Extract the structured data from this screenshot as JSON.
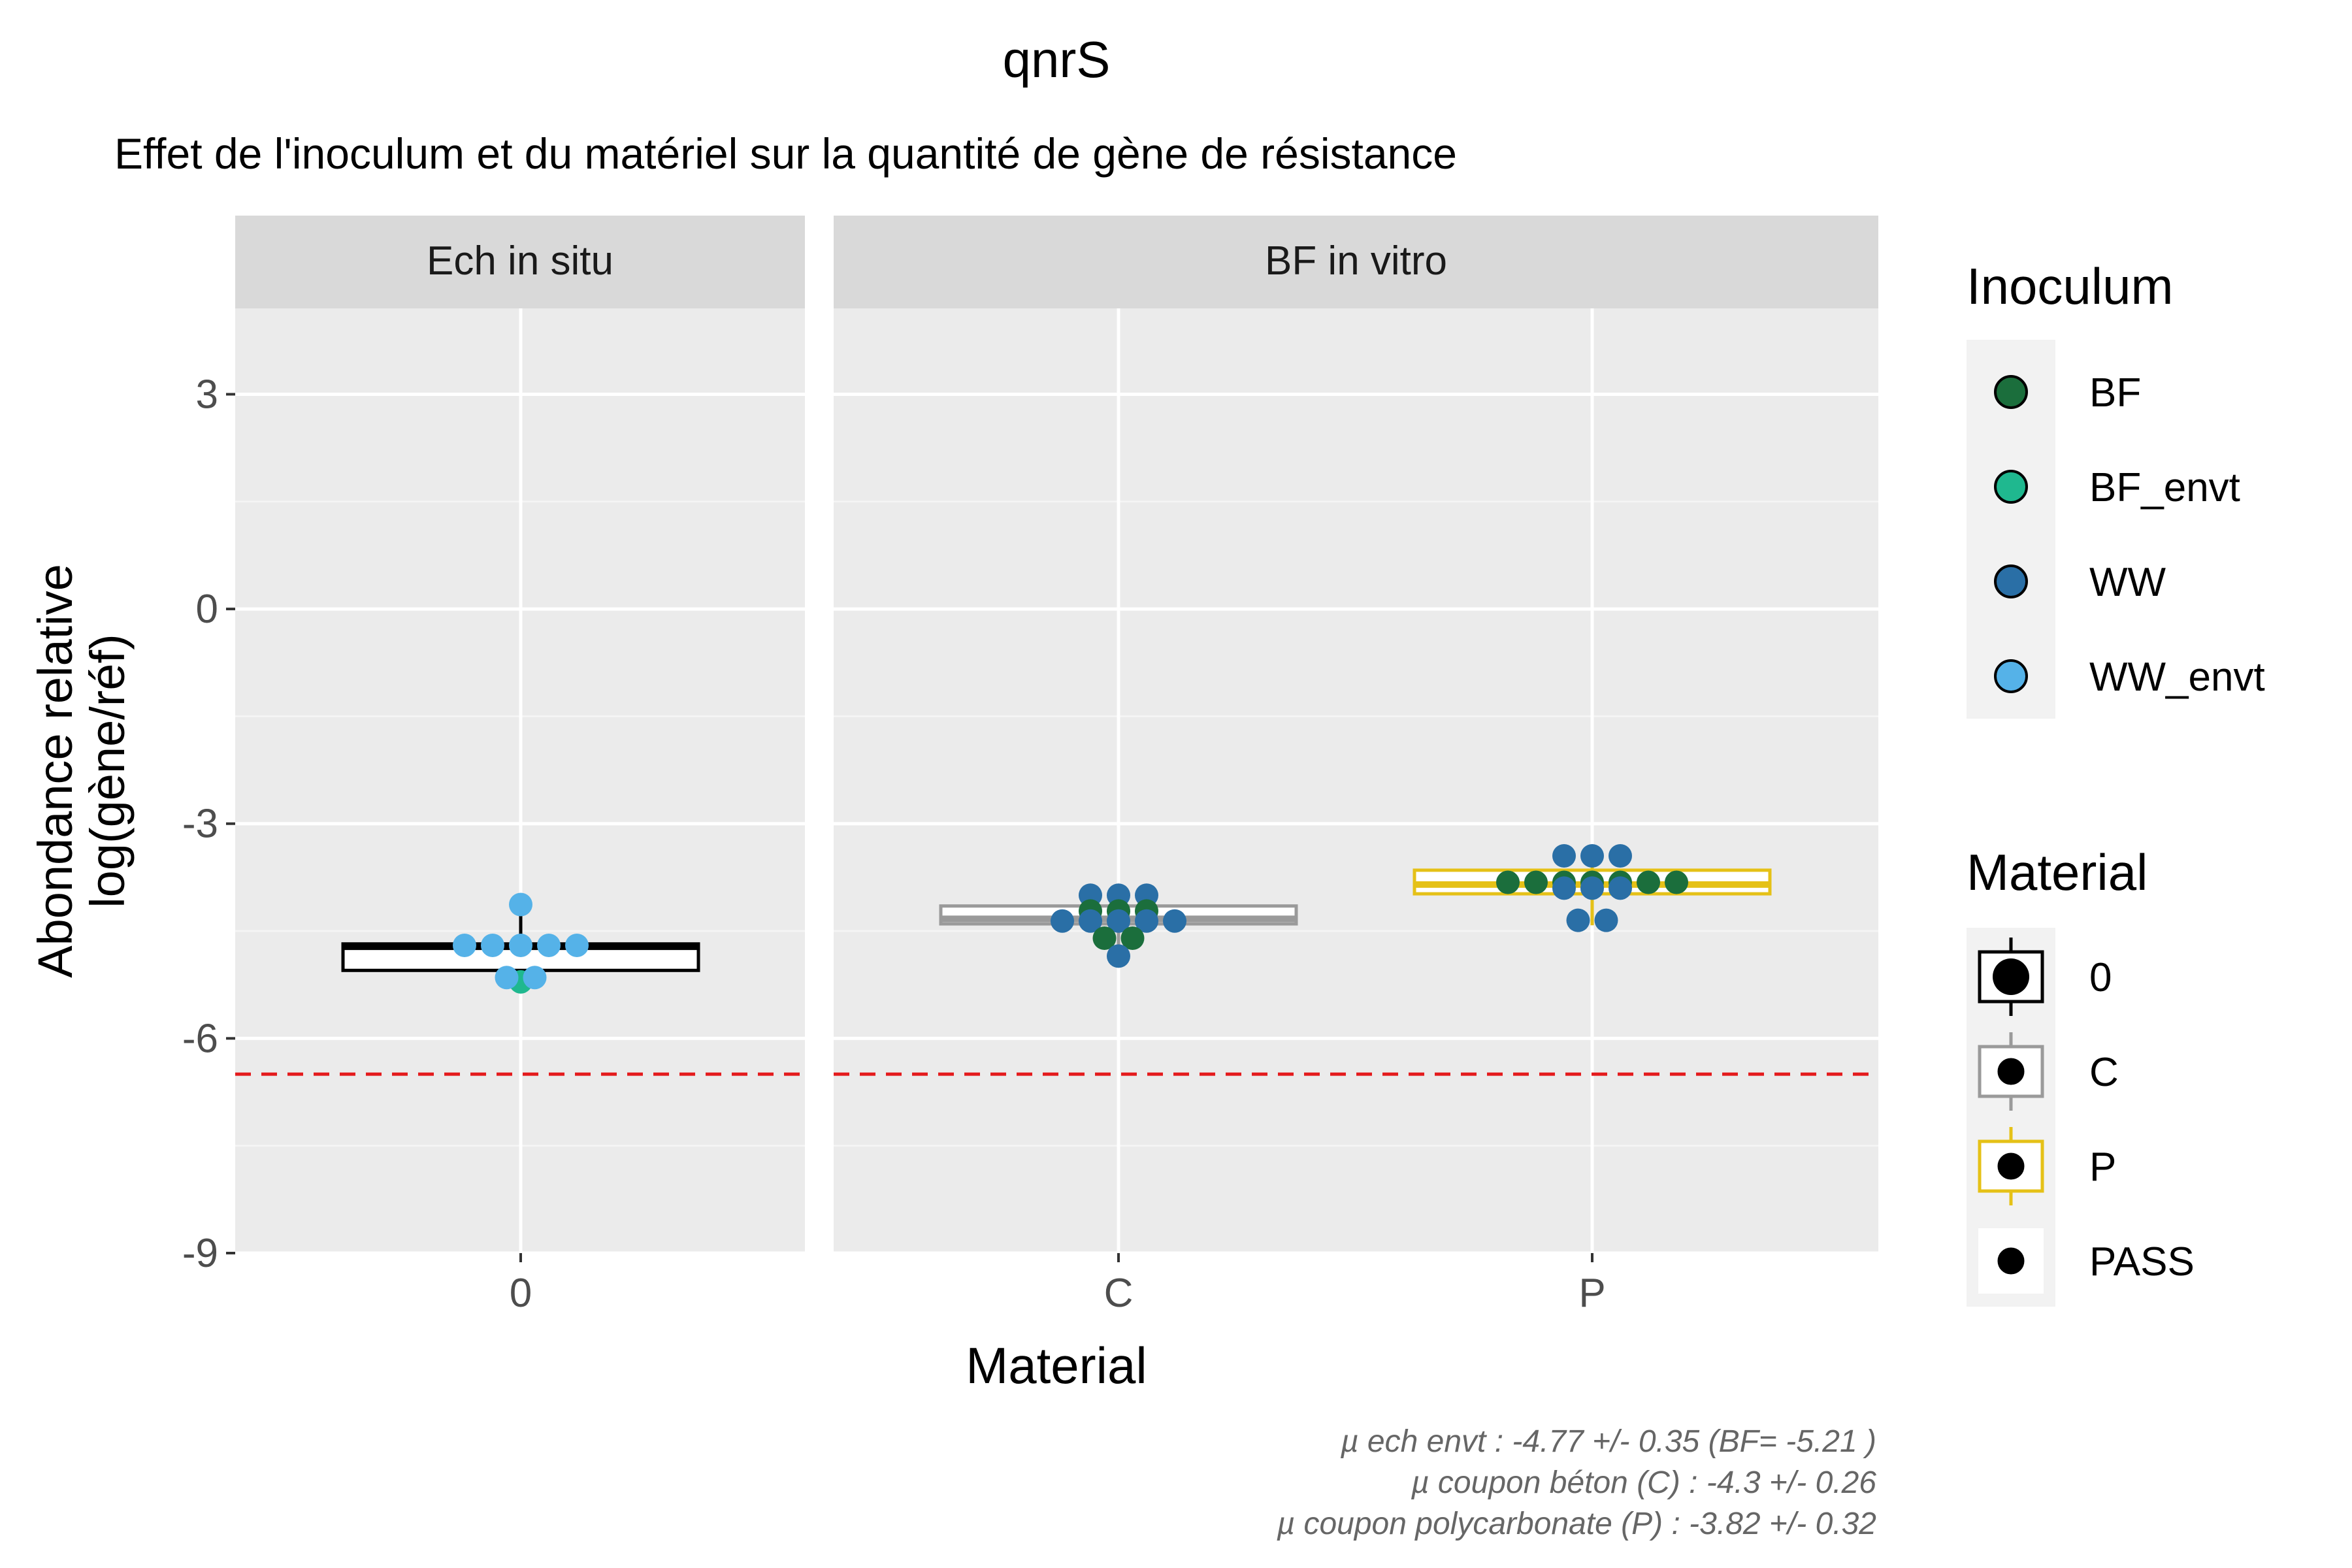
{
  "chart_data": {
    "type": "boxplot",
    "title": "qnrS",
    "subtitle": "Effet de l'inoculum et du matériel sur la quantité de gène de résistance",
    "xlabel": "Material",
    "ylabel_lines": [
      "Abondance relative",
      "log(gène/réf)"
    ],
    "ylim": [
      -9.0,
      4.2
    ],
    "yticks": [
      3,
      0,
      -3,
      -6,
      -9
    ],
    "ytick_labels": [
      "3",
      "0",
      "-3",
      "-6",
      "-9"
    ],
    "grid": true,
    "threshold_line": {
      "y": -6.5,
      "color": "#e41a1c",
      "style": "dashed"
    },
    "panels": [
      {
        "strip": "Ech in situ",
        "categories": [
          "0"
        ],
        "boxes": [
          {
            "category": "0",
            "q1": -5.05,
            "median": -4.72,
            "q3": -4.68,
            "whisker_low": -5.15,
            "whisker_high": -4.13,
            "material": "0"
          }
        ],
        "points": [
          {
            "category": "0",
            "y": -4.13,
            "inoculum": "WW_envt"
          },
          {
            "category": "0",
            "y": -4.7,
            "inoculum": "WW_envt"
          },
          {
            "category": "0",
            "y": -4.7,
            "inoculum": "WW_envt"
          },
          {
            "category": "0",
            "y": -4.7,
            "inoculum": "WW_envt"
          },
          {
            "category": "0",
            "y": -4.7,
            "inoculum": "WW_envt"
          },
          {
            "category": "0",
            "y": -4.7,
            "inoculum": "WW_envt"
          },
          {
            "category": "0",
            "y": -5.21,
            "inoculum": "BF_envt"
          },
          {
            "category": "0",
            "y": -5.15,
            "inoculum": "WW_envt"
          },
          {
            "category": "0",
            "y": -5.15,
            "inoculum": "WW_envt"
          }
        ]
      },
      {
        "strip": "BF in vitro",
        "categories": [
          "C",
          "P"
        ],
        "boxes": [
          {
            "category": "C",
            "q1": -4.4,
            "median": -4.33,
            "q3": -4.15,
            "whisker_low": -4.85,
            "whisker_high": -4.0,
            "material": "C"
          },
          {
            "category": "P",
            "q1": -3.98,
            "median": -3.85,
            "q3": -3.65,
            "whisker_low": -4.42,
            "whisker_high": -3.45,
            "material": "P"
          }
        ],
        "points": [
          {
            "category": "C",
            "y": -4.0,
            "inoculum": "WW"
          },
          {
            "category": "C",
            "y": -4.0,
            "inoculum": "WW"
          },
          {
            "category": "C",
            "y": -4.0,
            "inoculum": "WW"
          },
          {
            "category": "C",
            "y": -4.22,
            "inoculum": "BF"
          },
          {
            "category": "C",
            "y": -4.22,
            "inoculum": "BF"
          },
          {
            "category": "C",
            "y": -4.22,
            "inoculum": "BF"
          },
          {
            "category": "C",
            "y": -4.36,
            "inoculum": "WW"
          },
          {
            "category": "C",
            "y": -4.36,
            "inoculum": "WW"
          },
          {
            "category": "C",
            "y": -4.36,
            "inoculum": "WW"
          },
          {
            "category": "C",
            "y": -4.36,
            "inoculum": "WW"
          },
          {
            "category": "C",
            "y": -4.36,
            "inoculum": "WW"
          },
          {
            "category": "C",
            "y": -4.6,
            "inoculum": "BF"
          },
          {
            "category": "C",
            "y": -4.6,
            "inoculum": "BF"
          },
          {
            "category": "C",
            "y": -4.85,
            "inoculum": "WW"
          },
          {
            "category": "P",
            "y": -3.45,
            "inoculum": "WW"
          },
          {
            "category": "P",
            "y": -3.45,
            "inoculum": "WW"
          },
          {
            "category": "P",
            "y": -3.45,
            "inoculum": "WW"
          },
          {
            "category": "P",
            "y": -3.82,
            "inoculum": "BF"
          },
          {
            "category": "P",
            "y": -3.82,
            "inoculum": "BF"
          },
          {
            "category": "P",
            "y": -3.82,
            "inoculum": "BF"
          },
          {
            "category": "P",
            "y": -3.82,
            "inoculum": "BF"
          },
          {
            "category": "P",
            "y": -3.82,
            "inoculum": "BF"
          },
          {
            "category": "P",
            "y": -3.82,
            "inoculum": "BF"
          },
          {
            "category": "P",
            "y": -3.82,
            "inoculum": "BF"
          },
          {
            "category": "P",
            "y": -3.9,
            "inoculum": "WW"
          },
          {
            "category": "P",
            "y": -3.9,
            "inoculum": "WW"
          },
          {
            "category": "P",
            "y": -3.9,
            "inoculum": "WW"
          },
          {
            "category": "P",
            "y": -4.35,
            "inoculum": "WW"
          },
          {
            "category": "P",
            "y": -4.35,
            "inoculum": "WW"
          }
        ]
      }
    ],
    "legends": [
      {
        "title": "Inoculum",
        "items": [
          {
            "label": "BF",
            "color": "#1b6e3c"
          },
          {
            "label": "BF_envt",
            "color": "#1fb88f"
          },
          {
            "label": "WW",
            "color": "#2a6fa6"
          },
          {
            "label": "WW_envt",
            "color": "#55b2e8"
          }
        ]
      },
      {
        "title": "Material",
        "items": [
          {
            "label": "0",
            "color": "#000000"
          },
          {
            "label": "C",
            "color": "#9a9a9a"
          },
          {
            "label": "P",
            "color": "#e5c117"
          },
          {
            "label": "PASS",
            "color": "#ffffff"
          }
        ]
      }
    ],
    "caption": [
      "µ ech envt :  -4.77 +/- 0.35  (BF= -5.21 )",
      "µ coupon béton (C) :  -4.3 +/- 0.26",
      "µ coupon polycarbonate (P) :  -3.82 +/- 0.32"
    ]
  }
}
